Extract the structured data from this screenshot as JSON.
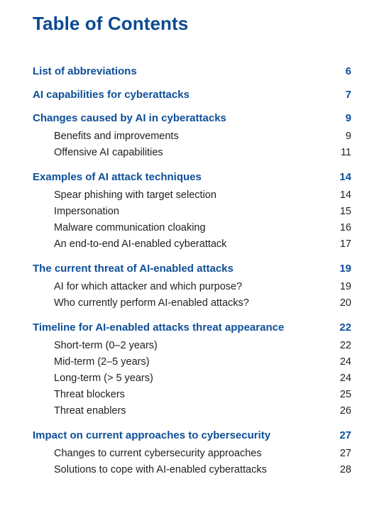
{
  "title": "Table of Contents",
  "sections": [
    {
      "label": "List of abbreviations",
      "page": "6",
      "items": []
    },
    {
      "label": "AI capabilities for cyberattacks",
      "page": "7",
      "items": []
    },
    {
      "label": "Changes caused by AI in cyberattacks",
      "page": "9",
      "items": [
        {
          "label": "Benefits and improvements",
          "page": "9"
        },
        {
          "label": "Offensive AI capabilities",
          "page": "11"
        }
      ]
    },
    {
      "label": "Examples of AI attack techniques",
      "page": "14",
      "items": [
        {
          "label": "Spear phishing with target selection",
          "page": "14"
        },
        {
          "label": "Impersonation",
          "page": "15"
        },
        {
          "label": "Malware communication cloaking",
          "page": "16"
        },
        {
          "label": "An end-to-end AI-enabled cyberattack",
          "page": "17"
        }
      ]
    },
    {
      "label": "The current threat of AI-enabled attacks",
      "page": "19",
      "items": [
        {
          "label": "AI for which attacker and which purpose?",
          "page": "19"
        },
        {
          "label": "Who currently perform AI-enabled attacks?",
          "page": "20"
        }
      ]
    },
    {
      "label": "Timeline for AI-enabled attacks threat appearance",
      "page": "22",
      "items": [
        {
          "label": "Short-term (0–2 years)",
          "page": "22"
        },
        {
          "label": "Mid-term (2–5 years)",
          "page": "24"
        },
        {
          "label": "Long-term (> 5 years)",
          "page": "24"
        },
        {
          "label": "Threat blockers",
          "page": "25"
        },
        {
          "label": "Threat enablers",
          "page": "26"
        }
      ]
    },
    {
      "label": "Impact on current approaches to cybersecurity",
      "page": "27",
      "items": [
        {
          "label": "Changes to current cybersecurity approaches",
          "page": "27"
        },
        {
          "label": "Solutions to cope with AI-enabled cyberattacks",
          "page": "28"
        }
      ]
    }
  ]
}
